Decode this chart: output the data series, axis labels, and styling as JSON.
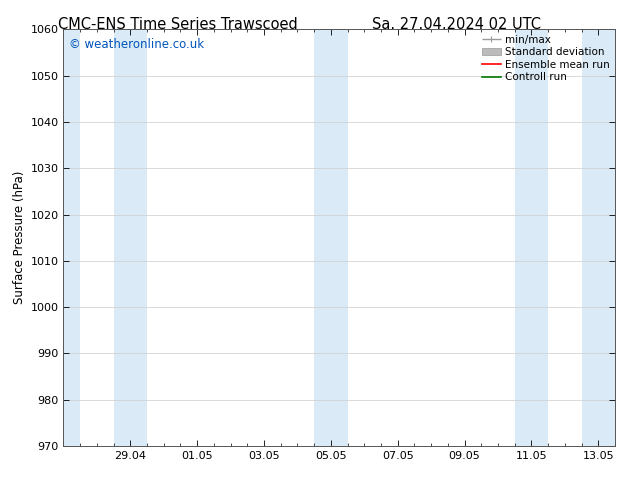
{
  "title_left": "CMC-ENS Time Series Trawscoed",
  "title_right": "Sa. 27.04.2024 02 UTC",
  "ylabel": "Surface Pressure (hPa)",
  "ylim": [
    970,
    1060
  ],
  "ytick_step": 10,
  "xlim_start": 0.0,
  "xlim_end": 16.5,
  "xtick_labels": [
    "29.04",
    "01.05",
    "03.05",
    "05.05",
    "07.05",
    "09.05",
    "11.05",
    "13.05"
  ],
  "xtick_positions": [
    2.0,
    4.0,
    6.0,
    8.0,
    10.0,
    12.0,
    14.0,
    16.0
  ],
  "shaded_bands": [
    [
      0.0,
      0.5
    ],
    [
      1.5,
      2.5
    ],
    [
      7.5,
      8.5
    ],
    [
      13.5,
      14.5
    ],
    [
      15.5,
      16.5
    ]
  ],
  "shade_color": "#daeaf7",
  "bg_color": "#ffffff",
  "watermark": "© weatheronline.co.uk",
  "watermark_color": "#0055bb",
  "legend_items": [
    "min/max",
    "Standard deviation",
    "Ensemble mean run",
    "Controll run"
  ],
  "minmax_color": "#999999",
  "std_color": "#bbbbbb",
  "ens_color": "#ff0000",
  "ctrl_color": "#007700",
  "grid_color": "#cccccc",
  "spine_color": "#555555",
  "title_fontsize": 10.5,
  "ylabel_fontsize": 8.5,
  "tick_fontsize": 8.0,
  "legend_fontsize": 7.5,
  "watermark_fontsize": 8.5
}
